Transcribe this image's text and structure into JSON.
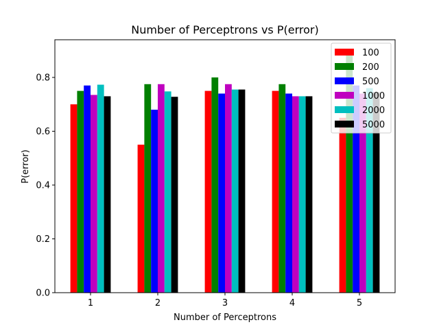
{
  "chart_data": {
    "type": "bar",
    "title": "Number of Perceptrons vs P(error)",
    "xlabel": "Number of Perceptrons",
    "ylabel": "P(error)",
    "categories": [
      "1",
      "2",
      "3",
      "4",
      "5"
    ],
    "ylim": [
      0,
      0.94
    ],
    "yticks": [
      "0.0",
      "0.2",
      "0.4",
      "0.6",
      "0.8"
    ],
    "grid": false,
    "legend_position": "top-right",
    "series": [
      {
        "name": "100",
        "color": "#ff0000",
        "values": [
          0.7,
          0.55,
          0.75,
          0.75,
          0.65
        ]
      },
      {
        "name": "200",
        "color": "#008000",
        "values": [
          0.75,
          0.775,
          0.8,
          0.775,
          0.89
        ]
      },
      {
        "name": "500",
        "color": "#0000ff",
        "values": [
          0.77,
          0.68,
          0.74,
          0.74,
          0.77
        ]
      },
      {
        "name": "1000",
        "color": "#bf00bf",
        "values": [
          0.735,
          0.775,
          0.775,
          0.73,
          0.74
        ]
      },
      {
        "name": "2000",
        "color": "#00bfbf",
        "values": [
          0.773,
          0.748,
          0.755,
          0.73,
          0.76
        ]
      },
      {
        "name": "5000",
        "color": "#000000",
        "values": [
          0.73,
          0.728,
          0.755,
          0.73,
          0.745
        ]
      }
    ]
  }
}
